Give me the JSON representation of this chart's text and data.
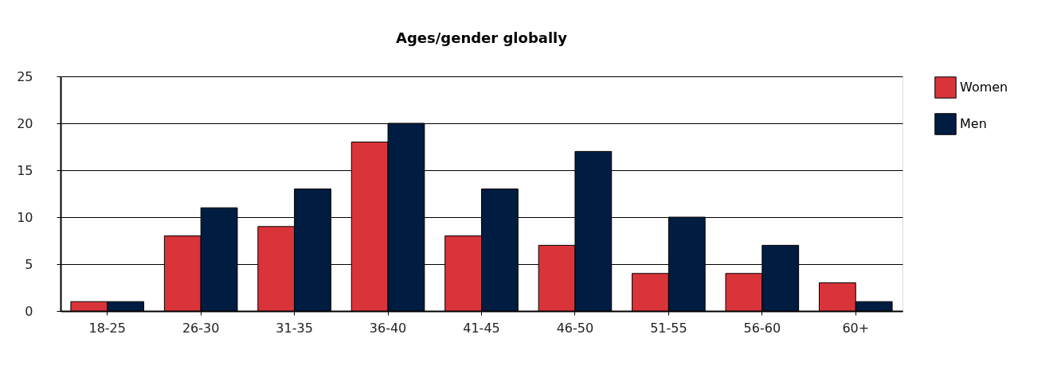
{
  "chart_data": {
    "type": "bar",
    "title": "Ages/gender globally",
    "categories": [
      "18-25",
      "26-30",
      "31-35",
      "36-40",
      "41-45",
      "46-50",
      "51-55",
      "56-60",
      "60+"
    ],
    "series": [
      {
        "name": "Women",
        "color": "#d9343a",
        "values": [
          1,
          8,
          9,
          18,
          8,
          7,
          4,
          4,
          3
        ]
      },
      {
        "name": "Men",
        "color": "#001c40",
        "values": [
          1,
          11,
          13,
          20,
          13,
          17,
          10,
          7,
          1
        ]
      }
    ],
    "ylim": [
      0,
      25
    ],
    "yticks": [
      0,
      5,
      10,
      15,
      20,
      25
    ],
    "grid": "y",
    "legend": "right"
  }
}
